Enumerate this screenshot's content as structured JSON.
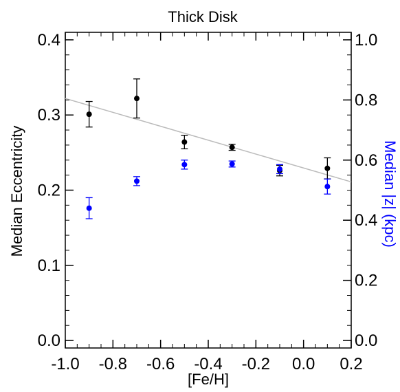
{
  "chart_data": {
    "type": "scatter",
    "title": "Thick Disk",
    "xlabel": "[Fe/H]",
    "ylabel_left": "Median Eccentricity",
    "ylabel_right": "Median |z| (kpc)",
    "xlim": [
      -1.0,
      0.2
    ],
    "ylim_left": [
      -0.01,
      0.41
    ],
    "ylim_right": [
      -0.025,
      1.025
    ],
    "x_ticks": [
      -1.0,
      -0.8,
      -0.6,
      -0.4,
      -0.2,
      0.0,
      0.2
    ],
    "x_tick_labels": [
      "-1.0",
      "-0.8",
      "-0.6",
      "-0.4",
      "-0.2",
      "0.0",
      "0.2"
    ],
    "y_left_ticks": [
      0.0,
      0.1,
      0.2,
      0.3,
      0.4
    ],
    "y_left_tick_labels": [
      "0.0",
      "0.1",
      "0.2",
      "0.3",
      "0.4"
    ],
    "y_right_ticks": [
      0.0,
      0.2,
      0.4,
      0.6,
      0.8,
      1.0
    ],
    "y_right_tick_labels": [
      "0.0",
      "0.2",
      "0.4",
      "0.6",
      "0.8",
      "1.0"
    ],
    "grid": false,
    "series": [
      {
        "axis": "left",
        "color": "#000000",
        "points": [
          {
            "x": -0.9,
            "y": 0.301,
            "err": 0.017
          },
          {
            "x": -0.7,
            "y": 0.322,
            "err": 0.026
          },
          {
            "x": -0.5,
            "y": 0.264,
            "err": 0.009
          },
          {
            "x": -0.3,
            "y": 0.257,
            "err": 0.004
          },
          {
            "x": -0.1,
            "y": 0.226,
            "err": 0.007
          },
          {
            "x": 0.1,
            "y": 0.229,
            "err": 0.014
          }
        ]
      },
      {
        "axis": "right",
        "color": "#0000ff",
        "points": [
          {
            "x": -0.9,
            "y": 0.44,
            "err": 0.035
          },
          {
            "x": -0.7,
            "y": 0.53,
            "err": 0.015
          },
          {
            "x": -0.5,
            "y": 0.585,
            "err": 0.015
          },
          {
            "x": -0.3,
            "y": 0.587,
            "err": 0.01
          },
          {
            "x": -0.1,
            "y": 0.57,
            "err": 0.015
          },
          {
            "x": 0.1,
            "y": 0.512,
            "err": 0.025
          }
        ]
      }
    ],
    "fit_line": {
      "axis": "left",
      "color": "#bbbbbb",
      "x": [
        -1.0,
        0.2
      ],
      "y": [
        0.322,
        0.211
      ]
    }
  }
}
